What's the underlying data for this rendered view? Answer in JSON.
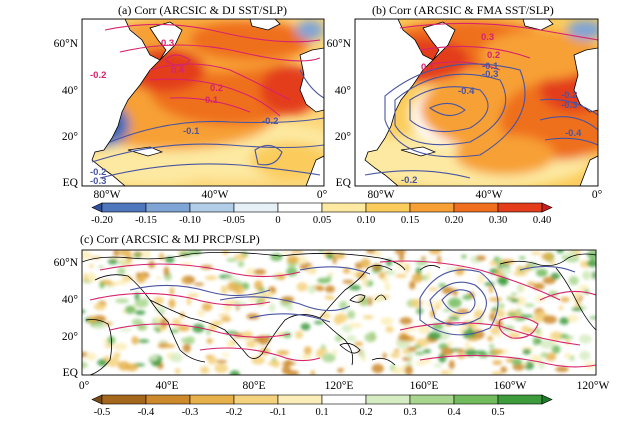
{
  "panels": {
    "a": {
      "title": "(a) Corr (ARCSIC & DJ SST/SLP)",
      "y_ticks": [
        "60°N",
        "40°",
        "20°",
        "EQ"
      ],
      "x_ticks": [
        "80°W",
        "40°W",
        "0°"
      ],
      "contour_labels": [
        "0.3",
        "0.4",
        "-0.2",
        "0.2",
        "0.1",
        "-0.1",
        "-0.2",
        "-0.2",
        "-0.3"
      ]
    },
    "b": {
      "title": "(b) Corr (ARCSIC & FMA SST/SLP)",
      "y_ticks": [
        "60°N",
        "40°",
        "20°",
        "EQ"
      ],
      "x_ticks": [
        "80°W",
        "40°W",
        "0°"
      ],
      "contour_labels": [
        "0.3",
        "0.2",
        "0.1",
        "-0.1",
        "-0.3",
        "-0.4",
        "-0.2",
        "-0.3",
        "-0.4",
        "-0.2"
      ]
    },
    "c": {
      "title": "(c) Corr (ARCSIC & MJ PRCP/SLP)",
      "y_ticks": [
        "60°N",
        "40°",
        "20°",
        "EQ"
      ],
      "x_ticks": [
        "0°",
        "40°E",
        "80°E",
        "120°E",
        "160°E",
        "160°W",
        "120°W"
      ]
    }
  },
  "colorbar_sst": {
    "labels": [
      "-0.20",
      "-0.15",
      "-0.10",
      "-0.05",
      "0",
      "0.05",
      "0.10",
      "0.15",
      "0.20",
      "0.30",
      "0.40"
    ],
    "colors": [
      "#2f4fa0",
      "#4f77bd",
      "#7fa4d6",
      "#b1cde8",
      "#e6f1f7",
      "#ffffff",
      "#fde9a1",
      "#fbcc5c",
      "#f7a035",
      "#ef6f1f",
      "#e33d1c",
      "#c81e1e"
    ]
  },
  "colorbar_prcp": {
    "labels": [
      "-0.5",
      "-0.4",
      "-0.3",
      "-0.2",
      "-0.1",
      "0.1",
      "0.2",
      "0.3",
      "0.4",
      "0.5"
    ],
    "colors": [
      "#7a4a14",
      "#a5671c",
      "#cc8a2c",
      "#e6b04a",
      "#f4d27e",
      "#fbeeb8",
      "#ffffff",
      "#d6ecc2",
      "#a9d68e",
      "#71bb5d",
      "#3d9b3c",
      "#1f7a2a"
    ]
  },
  "contour_colors": {
    "positive": "#d6246e",
    "negative": "#4a55a0"
  }
}
